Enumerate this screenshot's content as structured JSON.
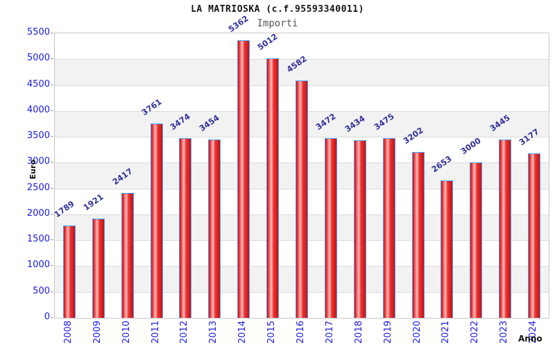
{
  "chart_data": {
    "type": "bar",
    "title": "LA MATRIOSKA (c.f.95593340011)",
    "legend": "Importi",
    "xlabel": "Anno",
    "ylabel": "Euro",
    "categories": [
      "2008",
      "2009",
      "2010",
      "2011",
      "2012",
      "2013",
      "2014",
      "2015",
      "2016",
      "2017",
      "2018",
      "2019",
      "2020",
      "2021",
      "2022",
      "2023",
      "2024"
    ],
    "values": [
      1789,
      1921,
      2417,
      3761,
      3474,
      3454,
      5362,
      5012,
      4582,
      3472,
      3434,
      3475,
      3202,
      2653,
      3000,
      3445,
      3177
    ],
    "ylim": [
      0,
      5500
    ],
    "ytick_step": 500,
    "grid": true,
    "legend_position": "top-center",
    "colors": {
      "title_text": "#141414",
      "legend_text": "#5a5a5a",
      "axis_tick_text": "#1a1ae0",
      "value_label_text": "#32329b",
      "axis_title_text": "#111111",
      "band_gray": "#f2f2f2",
      "band_white": "#ffffff",
      "gridline": "#dcdcdc",
      "plot_border": "#c6c6c6",
      "tick_mark": "#999999",
      "bar_border": "#46a3ff",
      "bar_dark": "#c01414",
      "bar_mid": "#ee3333",
      "bar_highlight": "#fcc0c0"
    }
  }
}
